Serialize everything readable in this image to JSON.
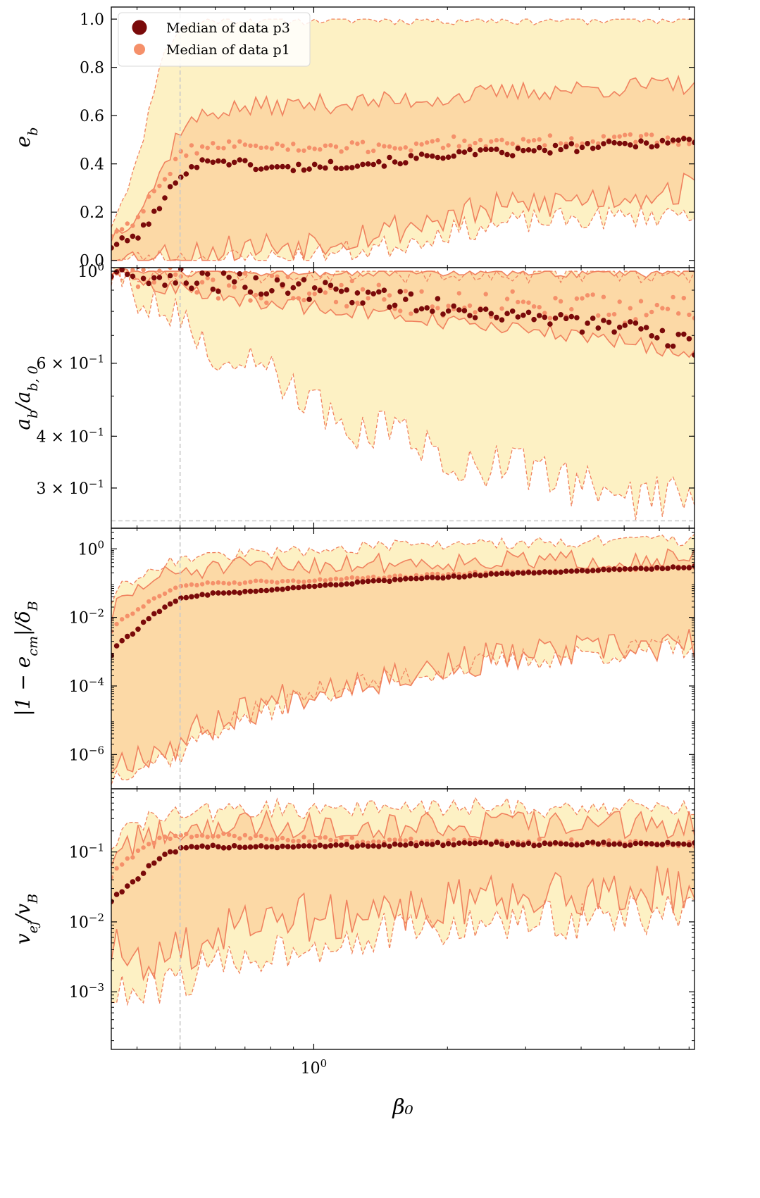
{
  "chart_data": {
    "type": "line",
    "xlabel": "β₀",
    "xscale": "log",
    "xlim": [
      0.35,
      7.2
    ],
    "x_ticks": [
      {
        "value": 1.0,
        "label": "10",
        "sup": "0"
      }
    ],
    "vline_x": 0.5,
    "legend": {
      "placement": "upper-left of top panel",
      "entries": [
        {
          "name": "Median of data p3",
          "color": "#7a0a0a",
          "marker": "large-dot"
        },
        {
          "name": "Median of data p1",
          "color": "#f5906a",
          "marker": "small-dot"
        }
      ]
    },
    "colors": {
      "outer_band": "#fdf1c4",
      "inner_band": "#fcd9a6",
      "line": "#f0825f",
      "p3": "#7a0a0a",
      "p1": "#f5906a",
      "vline": "#c9c9c9"
    },
    "panels": [
      {
        "name": "eb",
        "ylabel": "e_b",
        "ylabel_main": "e",
        "ylabel_sub": "b",
        "yscale": "linear",
        "ylim": [
          -0.03,
          1.05
        ],
        "yticks": [
          {
            "value": 0.0,
            "label": "0.0"
          },
          {
            "value": 0.2,
            "label": "0.2"
          },
          {
            "value": 0.4,
            "label": "0.4"
          },
          {
            "value": 0.6,
            "label": "0.6"
          },
          {
            "value": 0.8,
            "label": "0.8"
          },
          {
            "value": 1.0,
            "label": "1.0"
          }
        ],
        "x_range": [
          0.35,
          7.2
        ],
        "p3_anchors": [
          [
            0.35,
            0.06
          ],
          [
            0.4,
            0.1
          ],
          [
            0.45,
            0.22
          ],
          [
            0.5,
            0.36
          ],
          [
            0.55,
            0.4
          ],
          [
            0.6,
            0.42
          ],
          [
            0.7,
            0.4
          ],
          [
            0.8,
            0.38
          ],
          [
            1.0,
            0.39
          ],
          [
            1.5,
            0.41
          ],
          [
            2.0,
            0.44
          ],
          [
            3.0,
            0.45
          ],
          [
            4.0,
            0.47
          ],
          [
            5.0,
            0.48
          ],
          [
            7.2,
            0.5
          ]
        ],
        "p1_anchors": [
          [
            0.35,
            0.11
          ],
          [
            0.4,
            0.18
          ],
          [
            0.45,
            0.3
          ],
          [
            0.5,
            0.44
          ],
          [
            0.55,
            0.47
          ],
          [
            0.7,
            0.48
          ],
          [
            1.0,
            0.46
          ],
          [
            1.5,
            0.47
          ],
          [
            2.0,
            0.49
          ],
          [
            3.0,
            0.49
          ],
          [
            4.0,
            0.5
          ],
          [
            7.2,
            0.5
          ]
        ],
        "band_outer_high": [
          [
            0.35,
            0.15
          ],
          [
            0.4,
            0.4
          ],
          [
            0.45,
            0.82
          ],
          [
            0.5,
            0.97
          ],
          [
            0.6,
            1.0
          ],
          [
            7.2,
            1.0
          ]
        ],
        "band_outer_low": [
          [
            0.35,
            0.0
          ],
          [
            0.8,
            0.005
          ],
          [
            1.0,
            0.02
          ],
          [
            1.5,
            0.06
          ],
          [
            2.0,
            0.12
          ],
          [
            3.0,
            0.16
          ],
          [
            5.0,
            0.18
          ],
          [
            7.2,
            0.2
          ]
        ],
        "band_inner_high": [
          [
            0.35,
            0.1
          ],
          [
            0.4,
            0.2
          ],
          [
            0.45,
            0.35
          ],
          [
            0.5,
            0.55
          ],
          [
            0.6,
            0.62
          ],
          [
            0.8,
            0.64
          ],
          [
            1.5,
            0.66
          ],
          [
            3.0,
            0.7
          ],
          [
            7.2,
            0.73
          ]
        ],
        "band_inner_low": [
          [
            0.35,
            0.0
          ],
          [
            0.5,
            0.02
          ],
          [
            0.7,
            0.05
          ],
          [
            1.0,
            0.08
          ],
          [
            1.5,
            0.13
          ],
          [
            2.0,
            0.18
          ],
          [
            3.0,
            0.23
          ],
          [
            5.0,
            0.27
          ],
          [
            7.2,
            0.3
          ]
        ],
        "noise_outer": 0.05,
        "noise_inner": 0.07,
        "hline": null
      },
      {
        "name": "ab",
        "ylabel": "a_b/a_b,0",
        "ylabel_main": "a",
        "ylabel_sub": "b",
        "ylabel_mid": "/a",
        "ylabel_sub2": "b, 0",
        "yscale": "log",
        "ylim": [
          0.24,
          1.02
        ],
        "yticks": [
          {
            "value": 1.0,
            "label": "10",
            "sup": "0"
          },
          {
            "value": 0.6,
            "label": "6 × 10",
            "sup": "−1"
          },
          {
            "value": 0.4,
            "label": "4 × 10",
            "sup": "−1"
          },
          {
            "value": 0.3,
            "label": "3 × 10",
            "sup": "−1"
          }
        ],
        "x_range": [
          0.35,
          7.2
        ],
        "p3_anchors": [
          [
            0.35,
            0.995
          ],
          [
            0.4,
            0.985
          ],
          [
            0.5,
            0.96
          ],
          [
            0.6,
            0.945
          ],
          [
            0.8,
            0.92
          ],
          [
            1.0,
            0.9
          ],
          [
            1.5,
            0.86
          ],
          [
            2.0,
            0.82
          ],
          [
            3.0,
            0.78
          ],
          [
            4.0,
            0.75
          ],
          [
            5.0,
            0.72
          ],
          [
            7.2,
            0.66
          ]
        ],
        "p1_anchors": [
          [
            0.35,
            0.99
          ],
          [
            0.4,
            0.975
          ],
          [
            0.5,
            0.945
          ],
          [
            0.6,
            0.93
          ],
          [
            0.8,
            0.91
          ],
          [
            1.0,
            0.89
          ],
          [
            1.5,
            0.86
          ],
          [
            2.0,
            0.84
          ],
          [
            3.0,
            0.83
          ],
          [
            4.0,
            0.82
          ],
          [
            7.2,
            0.8
          ]
        ],
        "band_outer_high": [
          [
            0.35,
            1.0
          ],
          [
            7.2,
            1.0
          ]
        ],
        "band_outer_low": [
          [
            0.35,
            0.99
          ],
          [
            0.4,
            0.9
          ],
          [
            0.5,
            0.75
          ],
          [
            0.6,
            0.62
          ],
          [
            0.8,
            0.55
          ],
          [
            1.0,
            0.46
          ],
          [
            1.5,
            0.4
          ],
          [
            2.0,
            0.36
          ],
          [
            3.0,
            0.33
          ],
          [
            5.0,
            0.29
          ],
          [
            7.2,
            0.28
          ]
        ],
        "band_inner_high": [
          [
            0.35,
            1.0
          ],
          [
            7.2,
            0.99
          ]
        ],
        "band_inner_low": [
          [
            0.35,
            0.995
          ],
          [
            0.4,
            0.96
          ],
          [
            0.5,
            0.9
          ],
          [
            0.6,
            0.87
          ],
          [
            0.8,
            0.84
          ],
          [
            1.0,
            0.82
          ],
          [
            1.5,
            0.78
          ],
          [
            2.0,
            0.75
          ],
          [
            3.0,
            0.72
          ],
          [
            5.0,
            0.68
          ],
          [
            7.2,
            0.62
          ]
        ],
        "noise_outer": 0.06,
        "noise_inner": 0.02,
        "hline": 0.25
      },
      {
        "name": "ecm",
        "ylabel": "|1 − e_cm|/δ_B",
        "ylabel_main": "|1 − e",
        "ylabel_sub": "cm",
        "ylabel_mid": "|/δ",
        "ylabel_sub2": "B",
        "yscale": "log",
        "ylim": [
          1e-07,
          4.0
        ],
        "yticks": [
          {
            "value": 1.0,
            "label": "10",
            "sup": "0"
          },
          {
            "value": 0.01,
            "label": "10",
            "sup": "−2"
          },
          {
            "value": 0.0001,
            "label": "10",
            "sup": "−4"
          },
          {
            "value": 1e-06,
            "label": "10",
            "sup": "−6"
          }
        ],
        "x_range": [
          0.35,
          7.2
        ],
        "p3_anchors": [
          [
            0.35,
            0.0008
          ],
          [
            0.4,
            0.004
          ],
          [
            0.45,
            0.015
          ],
          [
            0.5,
            0.035
          ],
          [
            0.6,
            0.05
          ],
          [
            0.8,
            0.06
          ],
          [
            1.0,
            0.08
          ],
          [
            1.5,
            0.12
          ],
          [
            2.0,
            0.15
          ],
          [
            3.0,
            0.2
          ],
          [
            5.0,
            0.25
          ],
          [
            7.2,
            0.3
          ]
        ],
        "p1_anchors": [
          [
            0.35,
            0.004
          ],
          [
            0.4,
            0.015
          ],
          [
            0.45,
            0.04
          ],
          [
            0.5,
            0.08
          ],
          [
            0.6,
            0.1
          ],
          [
            0.8,
            0.11
          ],
          [
            1.0,
            0.12
          ],
          [
            1.5,
            0.15
          ],
          [
            2.0,
            0.18
          ],
          [
            3.0,
            0.22
          ],
          [
            5.0,
            0.26
          ],
          [
            7.2,
            0.3
          ]
        ],
        "band_outer_high": [
          [
            0.35,
            0.03
          ],
          [
            0.4,
            0.15
          ],
          [
            0.45,
            0.35
          ],
          [
            0.5,
            0.5
          ],
          [
            0.7,
            0.7
          ],
          [
            1.0,
            0.9
          ],
          [
            1.5,
            1.2
          ],
          [
            3.0,
            1.5
          ],
          [
            7.2,
            1.8
          ]
        ],
        "band_outer_low": [
          [
            0.35,
            2e-07
          ],
          [
            0.4,
            5e-07
          ],
          [
            0.5,
            1e-06
          ],
          [
            0.6,
            5e-06
          ],
          [
            0.8,
            2e-05
          ],
          [
            1.0,
            6e-05
          ],
          [
            1.5,
            0.00015
          ],
          [
            2.0,
            0.0003
          ],
          [
            3.0,
            0.0006
          ],
          [
            5.0,
            0.001
          ],
          [
            7.2,
            0.0015
          ]
        ],
        "band_inner_high": [
          [
            0.35,
            0.01
          ],
          [
            0.4,
            0.06
          ],
          [
            0.45,
            0.15
          ],
          [
            0.5,
            0.22
          ],
          [
            0.7,
            0.3
          ],
          [
            1.0,
            0.35
          ],
          [
            1.5,
            0.4
          ],
          [
            3.0,
            0.45
          ],
          [
            7.2,
            0.5
          ]
        ],
        "band_inner_low": [
          [
            0.35,
            5e-07
          ],
          [
            0.4,
            1e-06
          ],
          [
            0.5,
            2e-06
          ],
          [
            0.6,
            8e-06
          ],
          [
            0.8,
            3e-05
          ],
          [
            1.0,
            8e-05
          ],
          [
            1.5,
            0.0002
          ],
          [
            2.0,
            0.0004
          ],
          [
            3.0,
            0.0008
          ],
          [
            5.0,
            0.0012
          ],
          [
            7.2,
            0.0015
          ]
        ],
        "noise_outer": 0.35,
        "noise_inner": 0.5,
        "hline": null
      },
      {
        "name": "vej",
        "ylabel": "v_ej/v_B",
        "ylabel_main": "v",
        "ylabel_sub": "ej",
        "ylabel_mid": "/v",
        "ylabel_sub2": "B",
        "yscale": "log",
        "ylim": [
          0.00015,
          0.8
        ],
        "yticks": [
          {
            "value": 0.1,
            "label": "10",
            "sup": "−1"
          },
          {
            "value": 0.01,
            "label": "10",
            "sup": "−2"
          },
          {
            "value": 0.001,
            "label": "10",
            "sup": "−3"
          }
        ],
        "x_range": [
          0.35,
          7.2
        ],
        "p3_anchors": [
          [
            0.35,
            0.02
          ],
          [
            0.4,
            0.04
          ],
          [
            0.45,
            0.08
          ],
          [
            0.5,
            0.11
          ],
          [
            0.6,
            0.12
          ],
          [
            0.8,
            0.12
          ],
          [
            1.0,
            0.12
          ],
          [
            2.0,
            0.13
          ],
          [
            4.0,
            0.13
          ],
          [
            7.2,
            0.13
          ]
        ],
        "p1_anchors": [
          [
            0.35,
            0.045
          ],
          [
            0.4,
            0.1
          ],
          [
            0.45,
            0.15
          ],
          [
            0.5,
            0.17
          ],
          [
            0.6,
            0.17
          ],
          [
            0.8,
            0.16
          ],
          [
            1.0,
            0.15
          ],
          [
            2.0,
            0.14
          ],
          [
            4.0,
            0.14
          ],
          [
            7.2,
            0.13
          ]
        ],
        "band_outer_high": [
          [
            0.35,
            0.13
          ],
          [
            0.4,
            0.25
          ],
          [
            0.5,
            0.35
          ],
          [
            0.7,
            0.4
          ],
          [
            1.0,
            0.42
          ],
          [
            2.0,
            0.43
          ],
          [
            7.2,
            0.43
          ]
        ],
        "band_outer_low": [
          [
            0.35,
            0.001
          ],
          [
            0.4,
            0.0008
          ],
          [
            0.5,
            0.0015
          ],
          [
            0.7,
            0.003
          ],
          [
            1.0,
            0.005
          ],
          [
            1.5,
            0.007
          ],
          [
            2.0,
            0.008
          ],
          [
            3.0,
            0.01
          ],
          [
            5.0,
            0.012
          ],
          [
            7.2,
            0.014
          ]
        ],
        "band_inner_high": [
          [
            0.35,
            0.08
          ],
          [
            0.4,
            0.15
          ],
          [
            0.5,
            0.22
          ],
          [
            0.7,
            0.25
          ],
          [
            1.0,
            0.25
          ],
          [
            7.2,
            0.24
          ]
        ],
        "band_inner_low": [
          [
            0.35,
            0.004
          ],
          [
            0.4,
            0.002
          ],
          [
            0.5,
            0.004
          ],
          [
            0.7,
            0.008
          ],
          [
            1.0,
            0.012
          ],
          [
            1.5,
            0.015
          ],
          [
            2.0,
            0.018
          ],
          [
            3.0,
            0.022
          ],
          [
            5.0,
            0.028
          ],
          [
            7.2,
            0.03
          ]
        ],
        "noise_outer": 0.3,
        "noise_inner": 0.35,
        "hline": null
      }
    ]
  }
}
